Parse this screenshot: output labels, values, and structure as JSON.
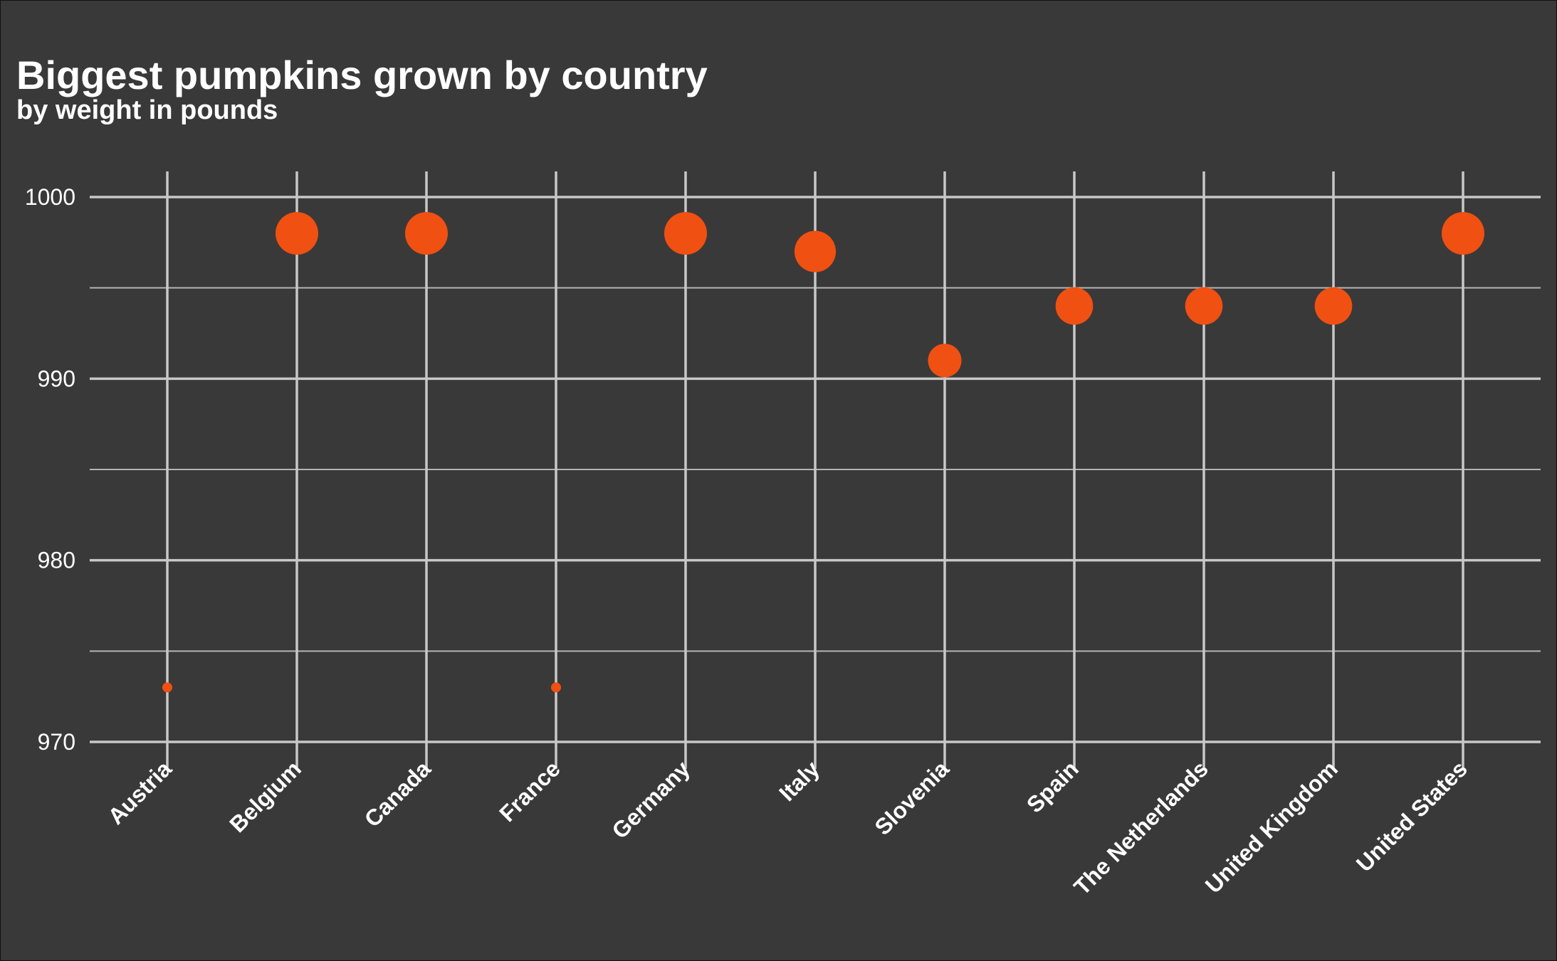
{
  "chart_data": {
    "type": "scatter",
    "title": "Biggest pumpkins grown by country",
    "subtitle": "by weight in pounds",
    "xlabel": "",
    "ylabel": "",
    "categories": [
      "Austria",
      "Belgium",
      "Canada",
      "France",
      "Germany",
      "Italy",
      "Slovenia",
      "Spain",
      "The Netherlands",
      "United Kingdom",
      "United States"
    ],
    "values": [
      973,
      998,
      998,
      973,
      998,
      997,
      991,
      994,
      994,
      994,
      998
    ],
    "ylim": [
      970,
      1001.5
    ],
    "yticks": [
      970,
      980,
      990,
      1000
    ],
    "grid": true,
    "legend": "none",
    "point_color": "#f05011",
    "point_size": "proportional to value"
  }
}
